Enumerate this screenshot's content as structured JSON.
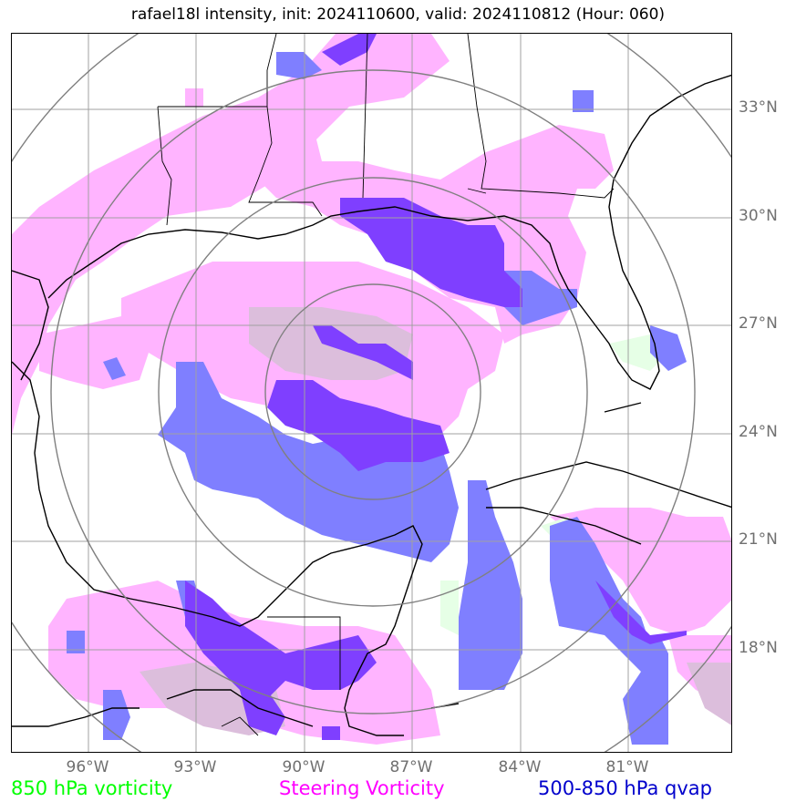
{
  "title": "rafael18l intensity, init: 2024110600, valid: 2024110812 (Hour: 060)",
  "lat_labels": [
    "33°N",
    "30°N",
    "27°N",
    "24°N",
    "21°N",
    "18°N"
  ],
  "lon_labels": [
    "96°W",
    "93°W",
    "90°W",
    "87°W",
    "84°W",
    "81°W"
  ],
  "legend": {
    "vort850": {
      "label": "850 hPa vorticity",
      "color": "#00ff00"
    },
    "steering": {
      "label": "Steering Vorticity",
      "color": "#ff00ff"
    },
    "qvap": {
      "label": "500-850 hPa qvap",
      "color": "#0000cc"
    }
  },
  "colors": {
    "steering_fill": "#ffb4ff",
    "qvap_fill": "#7f7fff",
    "overlap_fill": "#7f3fff",
    "vort_fill": "#e6ffe6",
    "mauve_fill": "#dcbedc",
    "grid": "#a0a0a0",
    "rings": "#808080",
    "coast": "#000000"
  }
}
